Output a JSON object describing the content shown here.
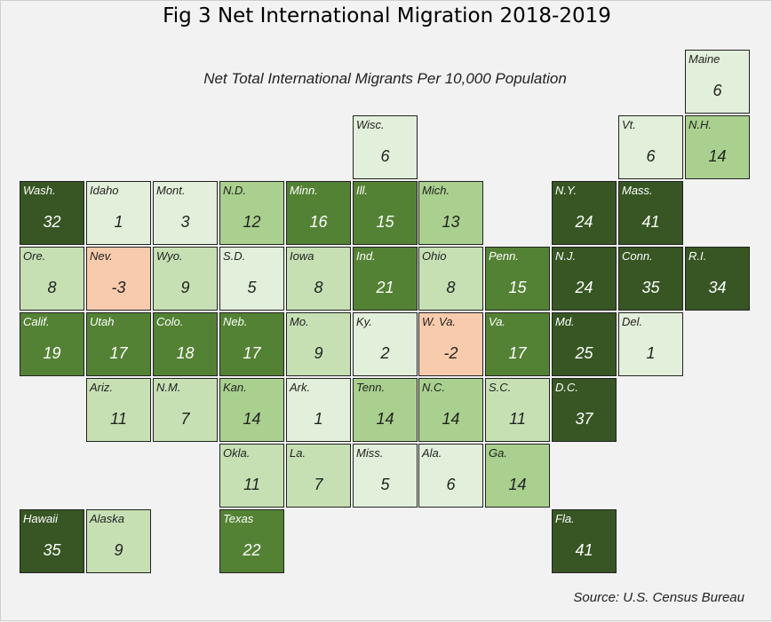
{
  "title": "Fig 3 Net International Migration 2018-2019",
  "subtitle": "Net Total International Migrants Per 10,000 Population",
  "source": "Source: U.S. Census Bureau",
  "colors": {
    "negative": "#f8cbad",
    "very_low": "#e2efda",
    "low": "#c6e0b4",
    "mid": "#a9d08e",
    "high": "#548235",
    "very_high": "#375623",
    "dark_text": "#222222",
    "light_text": "#ffffff"
  },
  "chart_data": {
    "type": "heatmap",
    "title": "Fig 3 Net International Migration 2018-2019",
    "subtitle": "Net Total International Migrants Per 10,000 Population",
    "states": [
      {
        "label": "Maine",
        "value": 6,
        "col": 10,
        "row": 0
      },
      {
        "label": "Wisc.",
        "value": 6,
        "col": 5,
        "row": 1
      },
      {
        "label": "Vt.",
        "value": 6,
        "col": 9,
        "row": 1
      },
      {
        "label": "N.H.",
        "value": 14,
        "col": 10,
        "row": 1
      },
      {
        "label": "Wash.",
        "value": 32,
        "col": 0,
        "row": 2
      },
      {
        "label": "Idaho",
        "value": 1,
        "col": 1,
        "row": 2
      },
      {
        "label": "Mont.",
        "value": 3,
        "col": 2,
        "row": 2
      },
      {
        "label": "N.D.",
        "value": 12,
        "col": 3,
        "row": 2
      },
      {
        "label": "Minn.",
        "value": 16,
        "col": 4,
        "row": 2
      },
      {
        "label": "Ill.",
        "value": 15,
        "col": 5,
        "row": 2
      },
      {
        "label": "Mich.",
        "value": 13,
        "col": 6,
        "row": 2
      },
      {
        "label": "N.Y.",
        "value": 24,
        "col": 8,
        "row": 2
      },
      {
        "label": "Mass.",
        "value": 41,
        "col": 9,
        "row": 2
      },
      {
        "label": "Ore.",
        "value": 8,
        "col": 0,
        "row": 3
      },
      {
        "label": "Nev.",
        "value": -3,
        "col": 1,
        "row": 3
      },
      {
        "label": "Wyo.",
        "value": 9,
        "col": 2,
        "row": 3
      },
      {
        "label": "S.D.",
        "value": 5,
        "col": 3,
        "row": 3
      },
      {
        "label": "Iowa",
        "value": 8,
        "col": 4,
        "row": 3
      },
      {
        "label": "Ind.",
        "value": 21,
        "col": 5,
        "row": 3
      },
      {
        "label": "Ohio",
        "value": 8,
        "col": 6,
        "row": 3
      },
      {
        "label": "Penn.",
        "value": 15,
        "col": 7,
        "row": 3
      },
      {
        "label": "N.J.",
        "value": 24,
        "col": 8,
        "row": 3
      },
      {
        "label": "Conn.",
        "value": 35,
        "col": 9,
        "row": 3
      },
      {
        "label": "R.I.",
        "value": 34,
        "col": 10,
        "row": 3
      },
      {
        "label": "Calif.",
        "value": 19,
        "col": 0,
        "row": 4
      },
      {
        "label": "Utah",
        "value": 17,
        "col": 1,
        "row": 4
      },
      {
        "label": "Colo.",
        "value": 18,
        "col": 2,
        "row": 4
      },
      {
        "label": "Neb.",
        "value": 17,
        "col": 3,
        "row": 4
      },
      {
        "label": "Mo.",
        "value": 9,
        "col": 4,
        "row": 4
      },
      {
        "label": "Ky.",
        "value": 2,
        "col": 5,
        "row": 4
      },
      {
        "label": "W. Va.",
        "value": -2,
        "col": 6,
        "row": 4
      },
      {
        "label": "Va.",
        "value": 17,
        "col": 7,
        "row": 4
      },
      {
        "label": "Md.",
        "value": 25,
        "col": 8,
        "row": 4
      },
      {
        "label": "Del.",
        "value": 1,
        "col": 9,
        "row": 4
      },
      {
        "label": "Ariz.",
        "value": 11,
        "col": 1,
        "row": 5
      },
      {
        "label": "N.M.",
        "value": 7,
        "col": 2,
        "row": 5
      },
      {
        "label": "Kan.",
        "value": 14,
        "col": 3,
        "row": 5
      },
      {
        "label": "Ark.",
        "value": 1,
        "col": 4,
        "row": 5
      },
      {
        "label": "Tenn.",
        "value": 14,
        "col": 5,
        "row": 5
      },
      {
        "label": "N.C.",
        "value": 14,
        "col": 6,
        "row": 5
      },
      {
        "label": "S.C.",
        "value": 11,
        "col": 7,
        "row": 5
      },
      {
        "label": "D.C.",
        "value": 37,
        "col": 8,
        "row": 5
      },
      {
        "label": "Okla.",
        "value": 11,
        "col": 3,
        "row": 6
      },
      {
        "label": "La.",
        "value": 7,
        "col": 4,
        "row": 6
      },
      {
        "label": "Miss.",
        "value": 5,
        "col": 5,
        "row": 6
      },
      {
        "label": "Ala.",
        "value": 6,
        "col": 6,
        "row": 6
      },
      {
        "label": "Ga.",
        "value": 14,
        "col": 7,
        "row": 6
      },
      {
        "label": "Hawaii",
        "value": 35,
        "col": 0,
        "row": 7
      },
      {
        "label": "Alaska",
        "value": 9,
        "col": 1,
        "row": 7
      },
      {
        "label": "Texas",
        "value": 22,
        "col": 3,
        "row": 7
      },
      {
        "label": "Fla.",
        "value": 41,
        "col": 8,
        "row": 7
      }
    ]
  }
}
